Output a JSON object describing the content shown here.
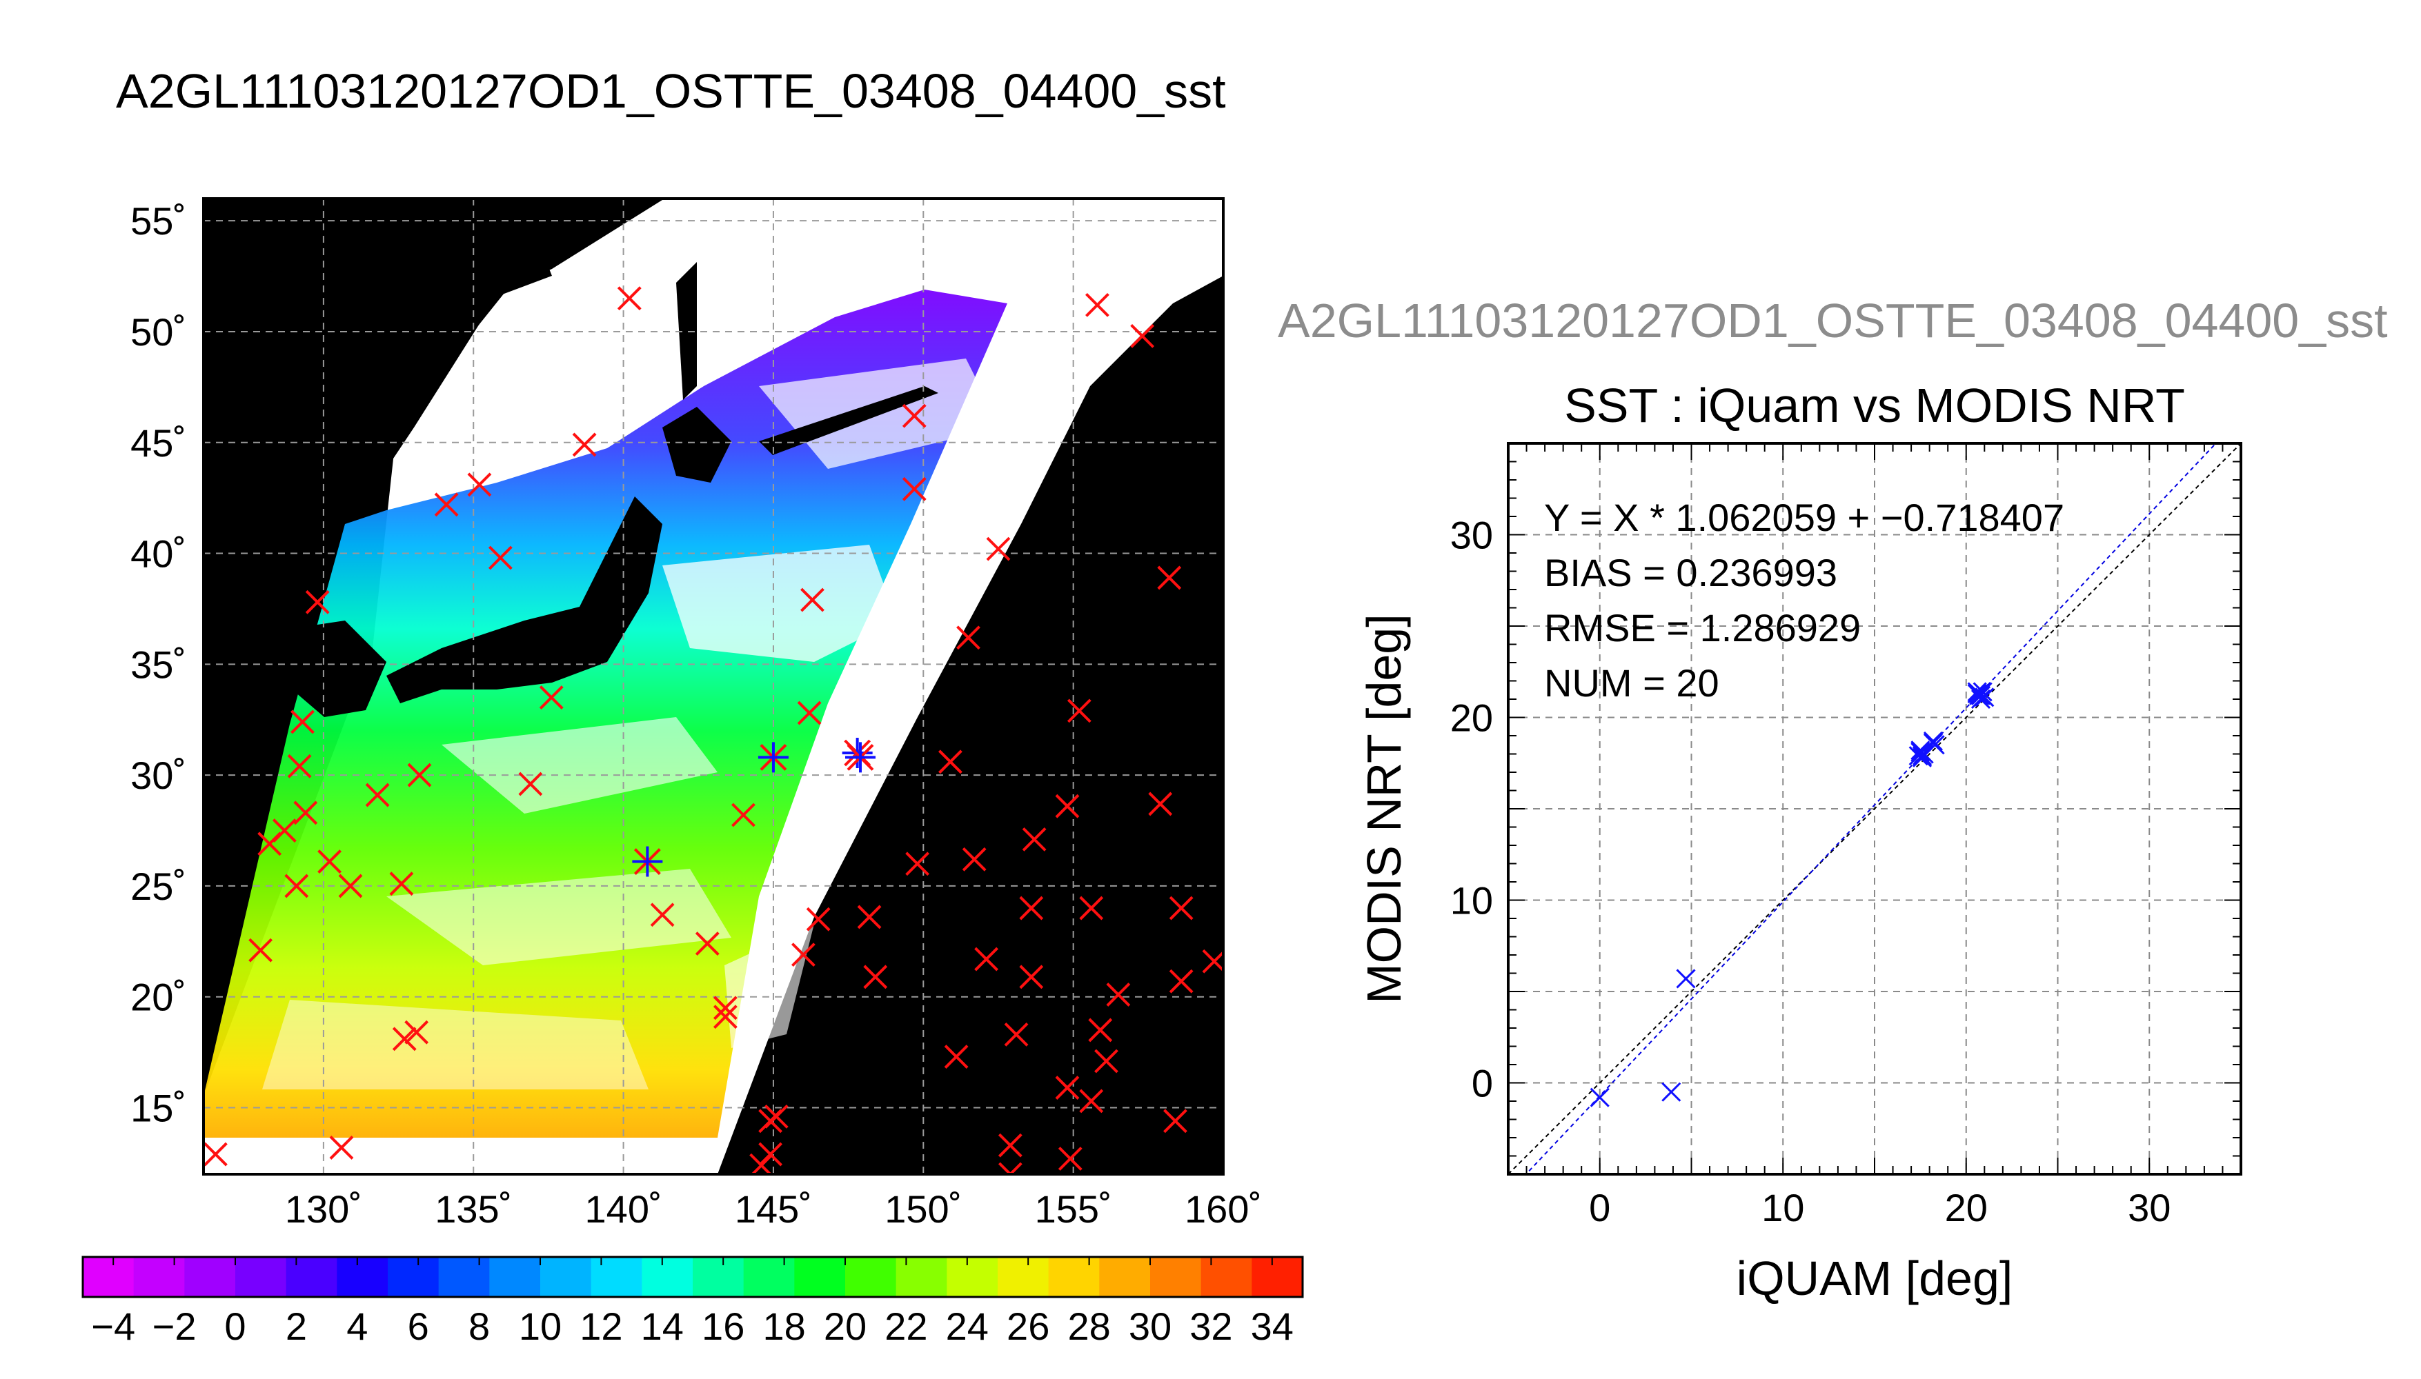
{
  "title": "A2GL11103120127OD1_OSTTE_03408_04400_sst",
  "ghost_title": "A2GL11103120127OD1_OSTTE_03408_04400_sst",
  "chart_data": [
    {
      "type": "map",
      "lon_range": [
        126,
        160
      ],
      "lat_range": [
        12,
        56
      ],
      "lat_ticks": [
        "55˚",
        "50˚",
        "45˚",
        "40˚",
        "35˚",
        "30˚",
        "25˚",
        "20˚",
        "15˚"
      ],
      "lat_tick_values": [
        55,
        50,
        45,
        40,
        35,
        30,
        25,
        20,
        15
      ],
      "lon_ticks": [
        "130˚",
        "135˚",
        "140˚",
        "145˚",
        "150˚",
        "155˚",
        "160˚"
      ],
      "lon_tick_values": [
        130,
        135,
        140,
        145,
        150,
        155,
        160
      ],
      "grid": true,
      "colorbar": {
        "min": -5,
        "max": 35,
        "labels": [
          "−4",
          "−2",
          "0",
          "2",
          "4",
          "6",
          "8",
          "10",
          "12",
          "14",
          "16",
          "18",
          "20",
          "22",
          "24",
          "26",
          "28",
          "30",
          "32",
          "34"
        ],
        "label_values": [
          -4,
          -2,
          0,
          2,
          4,
          6,
          8,
          10,
          12,
          14,
          16,
          18,
          20,
          22,
          24,
          26,
          28,
          30,
          32,
          34
        ],
        "colors": [
          "#e000ff",
          "#c400ff",
          "#a000ff",
          "#7800ff",
          "#4a00ff",
          "#1800ff",
          "#0028ff",
          "#0058ff",
          "#0088ff",
          "#00b4ff",
          "#00dcff",
          "#00ffe0",
          "#00ffa0",
          "#00ff60",
          "#00ff20",
          "#40ff00",
          "#88ff00",
          "#c4ff00",
          "#f0f000",
          "#ffd400",
          "#ffac00",
          "#ff8000",
          "#ff5000",
          "#ff2000"
        ]
      },
      "markers_red": [
        [
          140.2,
          51.5
        ],
        [
          155.8,
          51.2
        ],
        [
          157.3,
          49.8
        ],
        [
          149.7,
          46.2
        ],
        [
          138.7,
          44.9
        ],
        [
          134.1,
          42.2
        ],
        [
          135.2,
          43.1
        ],
        [
          149.7,
          42.9
        ],
        [
          135.9,
          39.8
        ],
        [
          152.5,
          40.2
        ],
        [
          146.3,
          37.9
        ],
        [
          158.2,
          38.9
        ],
        [
          129.8,
          37.8
        ],
        [
          151.5,
          36.2
        ],
        [
          137.6,
          33.5
        ],
        [
          146.2,
          32.8
        ],
        [
          155.2,
          32.9
        ],
        [
          129.3,
          32.4
        ],
        [
          150.9,
          30.6
        ],
        [
          129.2,
          30.4
        ],
        [
          131.8,
          29.1
        ],
        [
          133.2,
          30.0
        ],
        [
          136.9,
          29.6
        ],
        [
          144.0,
          28.2
        ],
        [
          128.2,
          26.9
        ],
        [
          129.4,
          28.3
        ],
        [
          128.7,
          27.5
        ],
        [
          130.2,
          26.1
        ],
        [
          129.1,
          25.0
        ],
        [
          130.9,
          25.0
        ],
        [
          132.6,
          25.1
        ],
        [
          141.3,
          23.7
        ],
        [
          142.8,
          22.4
        ],
        [
          127.9,
          22.1
        ],
        [
          146.5,
          23.5
        ],
        [
          148.2,
          23.6
        ],
        [
          146.0,
          21.9
        ],
        [
          148.4,
          20.9
        ],
        [
          149.8,
          26.0
        ],
        [
          151.7,
          26.2
        ],
        [
          153.7,
          27.1
        ],
        [
          154.8,
          28.6
        ],
        [
          157.9,
          28.7
        ],
        [
          153.6,
          24.0
        ],
        [
          155.6,
          24.0
        ],
        [
          158.6,
          24.0
        ],
        [
          152.1,
          21.7
        ],
        [
          153.6,
          20.9
        ],
        [
          156.5,
          20.1
        ],
        [
          159.7,
          21.6
        ],
        [
          158.6,
          20.7
        ],
        [
          133.1,
          18.4
        ],
        [
          132.7,
          18.1
        ],
        [
          143.4,
          19.5
        ],
        [
          143.4,
          19.1
        ],
        [
          151.1,
          17.3
        ],
        [
          153.1,
          18.3
        ],
        [
          155.9,
          18.5
        ],
        [
          156.1,
          17.1
        ],
        [
          154.8,
          15.9
        ],
        [
          155.6,
          15.3
        ],
        [
          158.4,
          14.4
        ],
        [
          126.4,
          12.9
        ],
        [
          130.6,
          13.2
        ],
        [
          144.9,
          14.4
        ],
        [
          145.1,
          14.6
        ],
        [
          144.6,
          12.4
        ],
        [
          144.9,
          12.9
        ],
        [
          152.9,
          13.3
        ],
        [
          154.9,
          12.7
        ],
        [
          152.9,
          12.0
        ]
      ],
      "markers_star": [
        [
          140.8,
          26.1
        ],
        [
          145.0,
          30.8
        ],
        [
          147.8,
          31.0
        ],
        [
          147.9,
          30.8
        ]
      ]
    },
    {
      "type": "scatter",
      "title": "SST : iQuam vs MODIS NRT",
      "xlabel": "iQUAM [deg]",
      "ylabel": "MODIS NRT [deg]",
      "xlim": [
        -5,
        35
      ],
      "ylim": [
        -5,
        35
      ],
      "x_ticks": [
        0,
        10,
        20,
        30
      ],
      "y_ticks": [
        0,
        10,
        20,
        30
      ],
      "grid": true,
      "points": [
        [
          0.0,
          -0.8
        ],
        [
          3.9,
          -0.5
        ],
        [
          4.7,
          5.7
        ],
        [
          17.4,
          17.9
        ],
        [
          17.5,
          18.2
        ],
        [
          17.6,
          17.8
        ],
        [
          17.7,
          18.0
        ],
        [
          18.2,
          18.7
        ],
        [
          18.3,
          18.5
        ],
        [
          20.6,
          21.3
        ],
        [
          20.7,
          21.2
        ],
        [
          20.9,
          21.4
        ],
        [
          20.8,
          21.0
        ],
        [
          20.7,
          21.3
        ],
        [
          21.0,
          21.1
        ],
        [
          17.5,
          18.1
        ],
        [
          17.6,
          17.9
        ],
        [
          20.8,
          21.2
        ],
        [
          18.2,
          18.6
        ],
        [
          20.6,
          21.4
        ]
      ],
      "fit": {
        "slope": 1.062059,
        "intercept": -0.718407
      },
      "stats_lines": [
        "Y = X * 1.062059 + −0.718407",
        "BIAS = 0.236993",
        "RMSE = 1.286929",
        "NUM = 20"
      ]
    }
  ]
}
